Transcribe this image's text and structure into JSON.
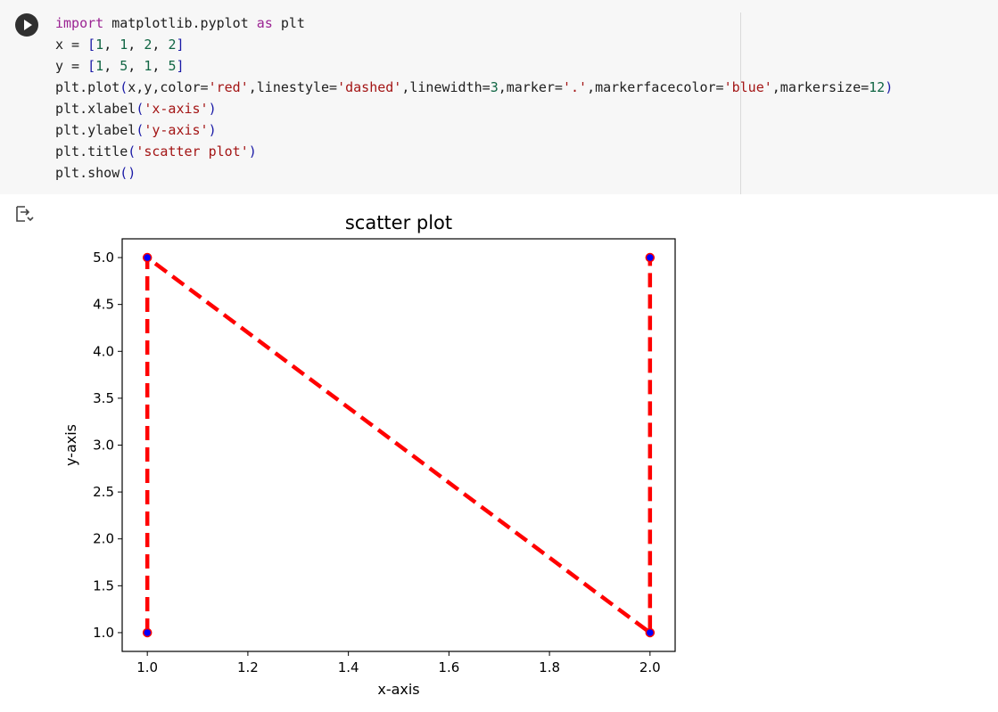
{
  "code_cell": {
    "run_button": "run-icon",
    "lines": [
      [
        {
          "t": "import",
          "c": "kw"
        },
        {
          "t": " matplotlib.pyplot ",
          "c": ""
        },
        {
          "t": "as",
          "c": "kw"
        },
        {
          "t": " plt",
          "c": ""
        }
      ],
      [
        {
          "t": "x = ",
          "c": ""
        },
        {
          "t": "[",
          "c": "br"
        },
        {
          "t": "1",
          "c": "num"
        },
        {
          "t": ", ",
          "c": ""
        },
        {
          "t": "1",
          "c": "num"
        },
        {
          "t": ", ",
          "c": ""
        },
        {
          "t": "2",
          "c": "num"
        },
        {
          "t": ", ",
          "c": ""
        },
        {
          "t": "2",
          "c": "num"
        },
        {
          "t": "]",
          "c": "br"
        }
      ],
      [
        {
          "t": "y = ",
          "c": ""
        },
        {
          "t": "[",
          "c": "br"
        },
        {
          "t": "1",
          "c": "num"
        },
        {
          "t": ", ",
          "c": ""
        },
        {
          "t": "5",
          "c": "num"
        },
        {
          "t": ", ",
          "c": ""
        },
        {
          "t": "1",
          "c": "num"
        },
        {
          "t": ", ",
          "c": ""
        },
        {
          "t": "5",
          "c": "num"
        },
        {
          "t": "]",
          "c": "br"
        }
      ],
      [
        {
          "t": "plt.plot",
          "c": ""
        },
        {
          "t": "(",
          "c": "br"
        },
        {
          "t": "x,y,color=",
          "c": ""
        },
        {
          "t": "'red'",
          "c": "str"
        },
        {
          "t": ",linestyle=",
          "c": ""
        },
        {
          "t": "'dashed'",
          "c": "str"
        },
        {
          "t": ",linewidth=",
          "c": ""
        },
        {
          "t": "3",
          "c": "num"
        },
        {
          "t": ",marker=",
          "c": ""
        },
        {
          "t": "'.'",
          "c": "str"
        },
        {
          "t": ",markerfacecolor=",
          "c": ""
        },
        {
          "t": "'blue'",
          "c": "str"
        },
        {
          "t": ",markersize=",
          "c": ""
        },
        {
          "t": "12",
          "c": "num"
        },
        {
          "t": ")",
          "c": "br"
        }
      ],
      [
        {
          "t": "plt.xlabel",
          "c": ""
        },
        {
          "t": "(",
          "c": "br"
        },
        {
          "t": "'x-axis'",
          "c": "str"
        },
        {
          "t": ")",
          "c": "br"
        }
      ],
      [
        {
          "t": "plt.ylabel",
          "c": ""
        },
        {
          "t": "(",
          "c": "br"
        },
        {
          "t": "'y-axis'",
          "c": "str"
        },
        {
          "t": ")",
          "c": "br"
        }
      ],
      [
        {
          "t": "plt.title",
          "c": ""
        },
        {
          "t": "(",
          "c": "br"
        },
        {
          "t": "'scatter plot'",
          "c": "str"
        },
        {
          "t": ")",
          "c": "br"
        }
      ],
      [
        {
          "t": "plt.show",
          "c": ""
        },
        {
          "t": "()",
          "c": "br"
        }
      ]
    ]
  },
  "output": {
    "icon": "output-toggle-icon"
  },
  "chart_data": {
    "type": "line",
    "title": "scatter plot",
    "xlabel": "x-axis",
    "ylabel": "y-axis",
    "x": [
      1,
      1,
      2,
      2
    ],
    "y": [
      1,
      5,
      1,
      5
    ],
    "line_color": "#ff0000",
    "linestyle": "dashed",
    "marker_face_color": "#0000ff",
    "marker_edge_color": "#ff0000",
    "xlim": [
      0.95,
      2.05
    ],
    "ylim": [
      0.8,
      5.2
    ],
    "xticks": [
      "1.0",
      "1.2",
      "1.4",
      "1.6",
      "1.8",
      "2.0"
    ],
    "xtick_values": [
      1.0,
      1.2,
      1.4,
      1.6,
      1.8,
      2.0
    ],
    "yticks": [
      "1.0",
      "1.5",
      "2.0",
      "2.5",
      "3.0",
      "3.5",
      "4.0",
      "4.5",
      "5.0"
    ],
    "ytick_values": [
      1.0,
      1.5,
      2.0,
      2.5,
      3.0,
      3.5,
      4.0,
      4.5,
      5.0
    ],
    "grid": false,
    "legend": "none"
  }
}
